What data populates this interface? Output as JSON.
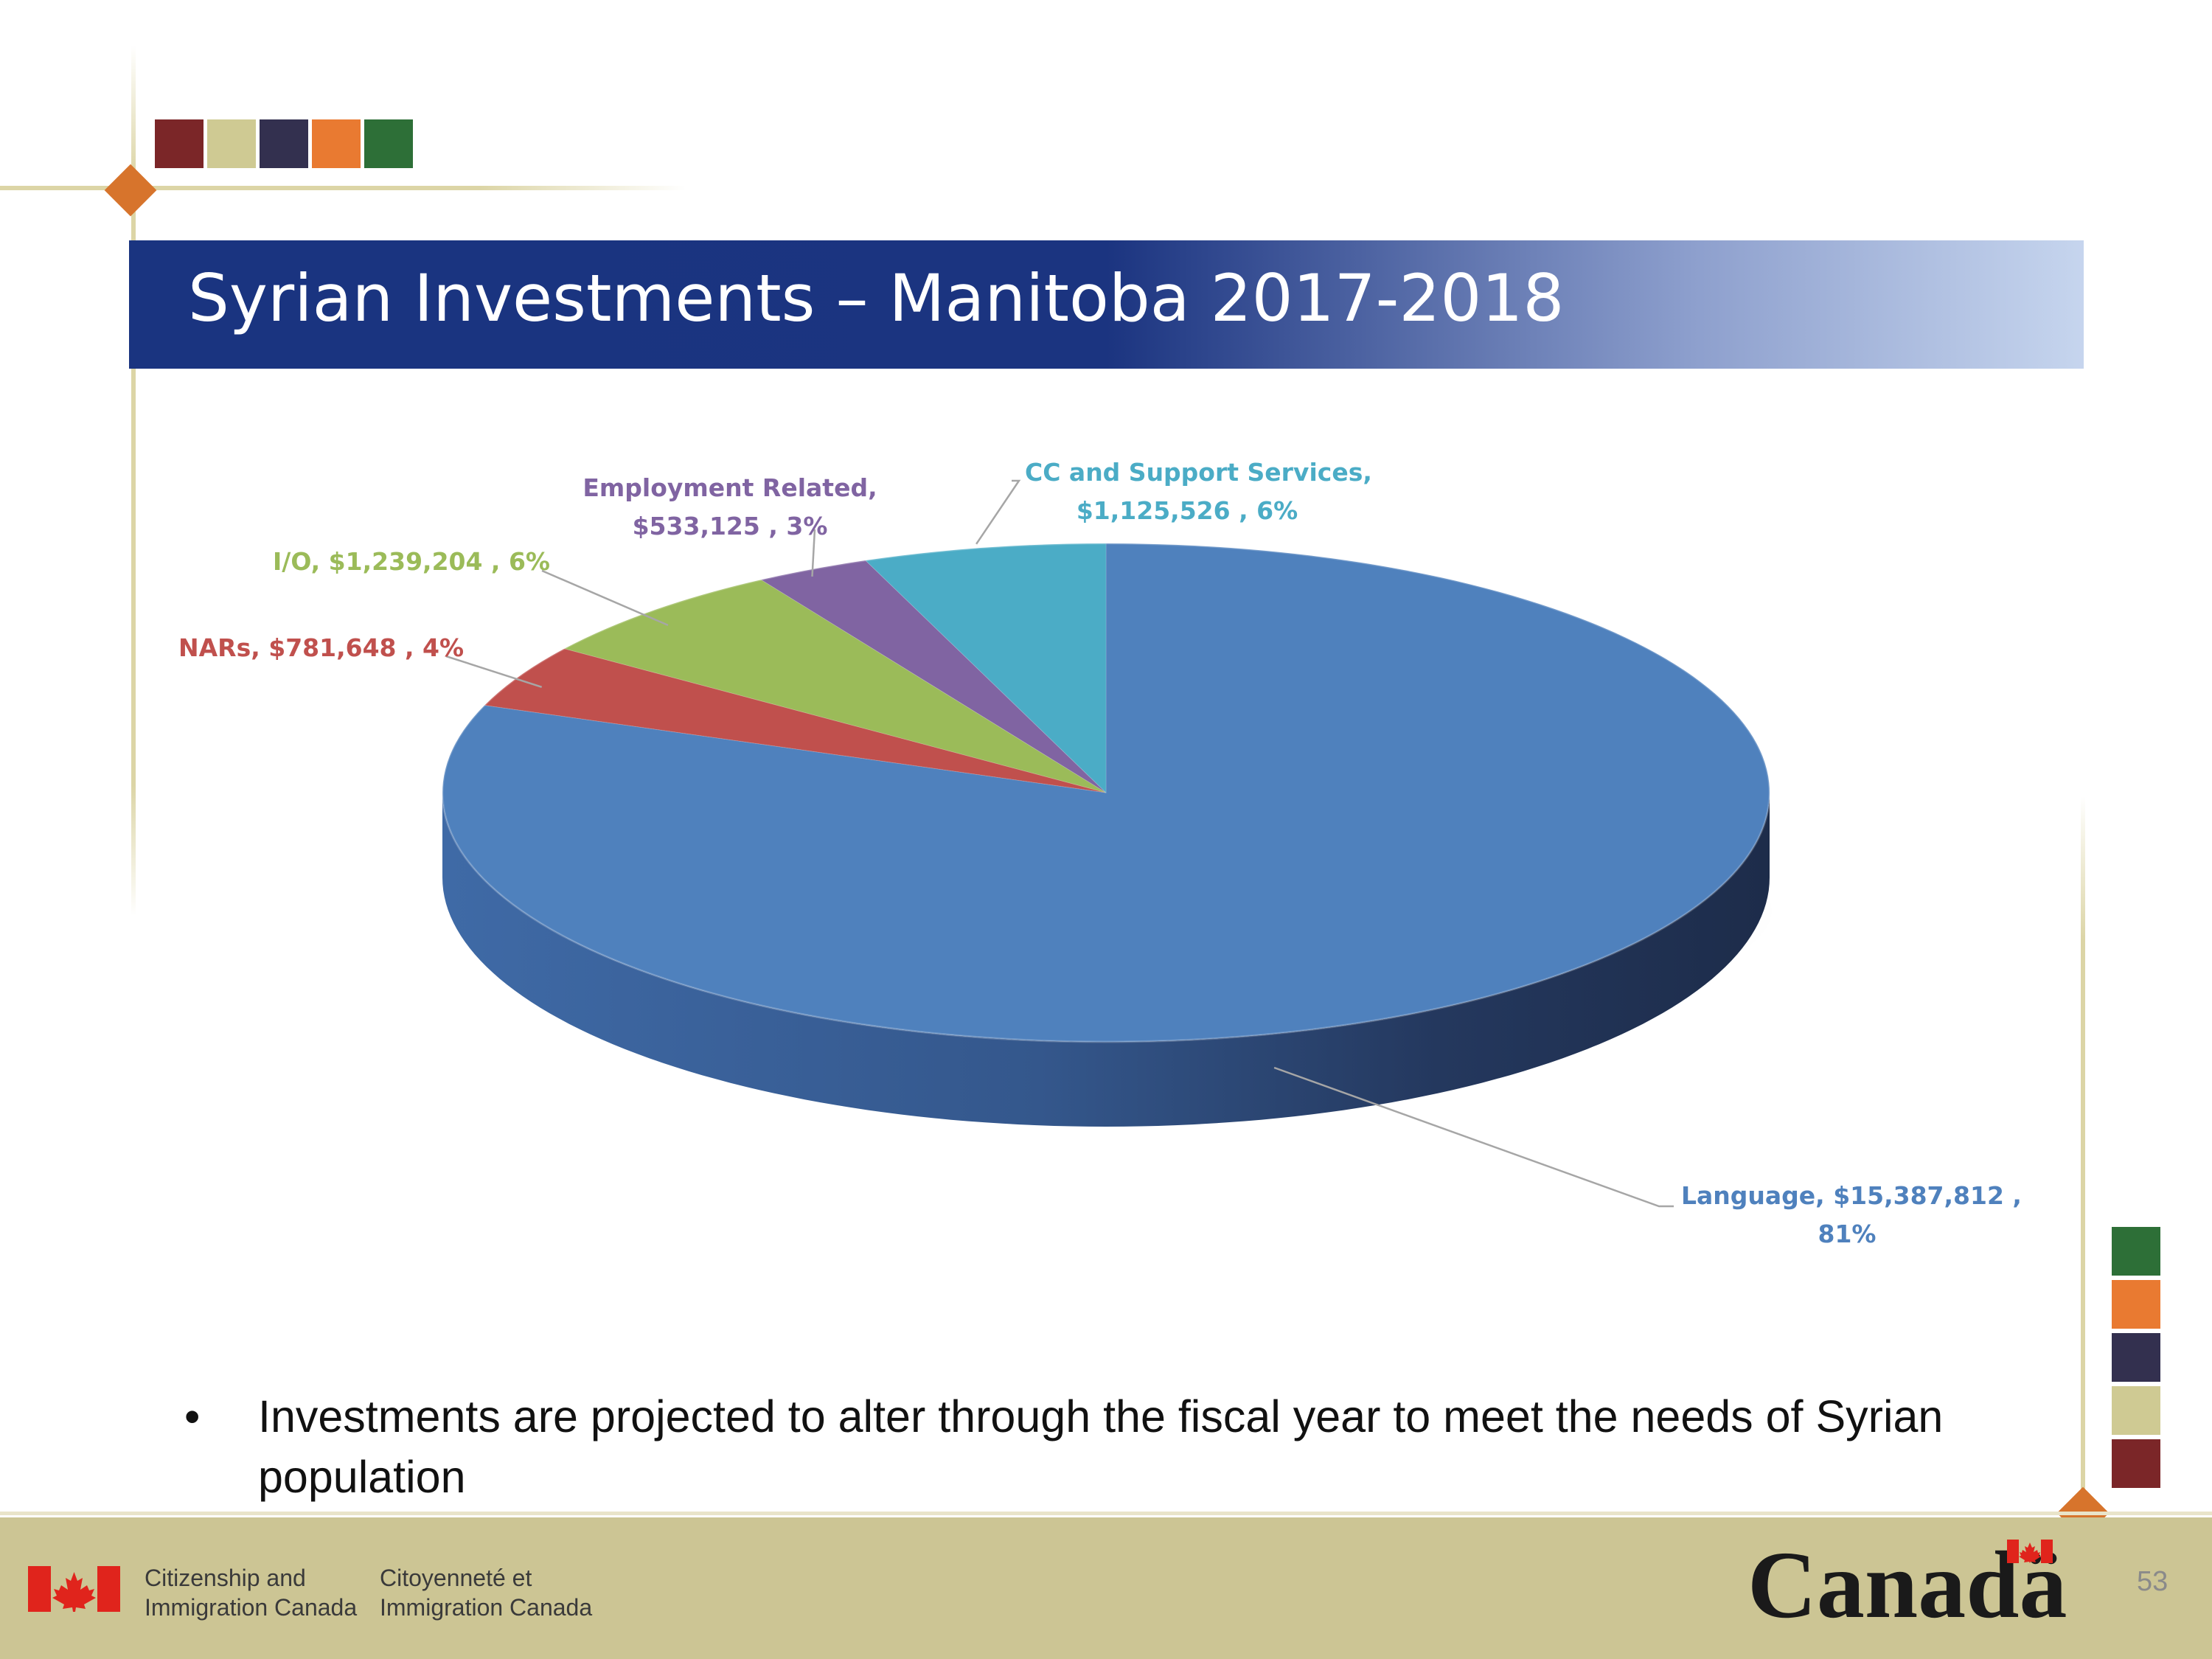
{
  "slide": {
    "title": "Syrian Investments – Manitoba 2017-2018",
    "bullet": "Investments are projected to alter through the fiscal year to meet the needs of Syrian population",
    "bullet_marker": "•",
    "page_number": "53"
  },
  "palette": {
    "top_squares": [
      "#7b2628",
      "#cfca93",
      "#33304f",
      "#e97a31",
      "#2d6f37"
    ],
    "right_squares": [
      "#2d6f37",
      "#e97a31",
      "#33304f",
      "#cfca93",
      "#7b2628"
    ],
    "accent_diamond": "#d7742c",
    "rule_color": "#dcd5a6"
  },
  "footer": {
    "dept_en_line1": "Citizenship and",
    "dept_en_line2": "Immigration Canada",
    "dept_fr_line1": "Citoyenneté et",
    "dept_fr_line2": "Immigration Canada",
    "wordmark": "Canadä",
    "flag_icon": "canada-flag-icon"
  },
  "chart_data": {
    "type": "pie",
    "style": "3d",
    "unit": "$",
    "slices": [
      {
        "label": "Language",
        "value": 15387812,
        "percent": 81,
        "color": "#4f81bd",
        "label_line1": "Language,  $15,387,812 ,",
        "label_line2": "81%"
      },
      {
        "label": "NARs",
        "value": 781648,
        "percent": 4,
        "color": "#c0504d",
        "label_line1": "NARs,  $781,648 , 4%",
        "label_line2": ""
      },
      {
        "label": "I/O",
        "value": 1239204,
        "percent": 6,
        "color": "#9bbb59",
        "label_line1": "I/O,  $1,239,204 , 6%",
        "label_line2": ""
      },
      {
        "label": "Employment Related",
        "value": 533125,
        "percent": 3,
        "color": "#8064a2",
        "label_line1": "Employment Related,",
        "label_line2": "$533,125 , 3%"
      },
      {
        "label": "CC and Support Services",
        "value": 1125526,
        "percent": 6,
        "color": "#4bacc6",
        "label_line1": "CC and Support Services,",
        "label_line2": "$1,125,526 , 6%"
      }
    ]
  }
}
